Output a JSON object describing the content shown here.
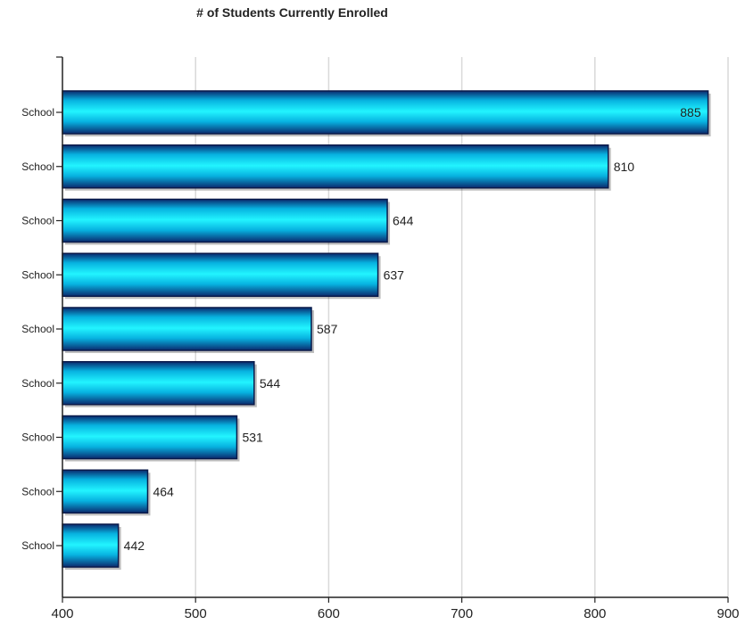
{
  "chart_data": {
    "type": "bar",
    "orientation": "horizontal",
    "title": "# of Students Currently Enrolled",
    "xlabel": "",
    "ylabel": "",
    "categories": [
      "School",
      "School",
      "School",
      "School",
      "School",
      "School",
      "School",
      "School",
      "School"
    ],
    "values": [
      885,
      810,
      644,
      637,
      587,
      544,
      531,
      464,
      442
    ],
    "xlim": [
      400,
      900
    ],
    "x_ticks": [
      400,
      500,
      600,
      700,
      800,
      900
    ],
    "grid": "vertical",
    "legend": "none",
    "colors": {
      "bar_center": "#22f4ff",
      "bar_mid": "#07b2e0",
      "bar_edge": "#0a2a6e",
      "bar_outline": "#0a1a4a",
      "grid": "#d9d9d9",
      "axis": "#222222"
    }
  }
}
